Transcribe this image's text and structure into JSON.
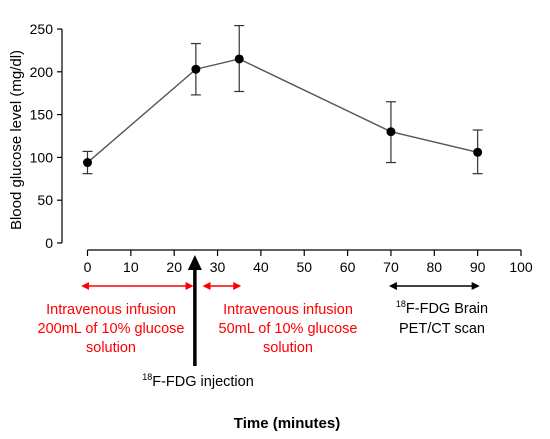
{
  "chart_data": {
    "type": "line",
    "title": "",
    "xlabel": "Time (minutes)",
    "ylabel": "Blood glucose level (mg/dl)",
    "xlim": [
      0,
      100
    ],
    "ylim": [
      0,
      250
    ],
    "x_ticks": [
      0,
      10,
      20,
      30,
      40,
      50,
      60,
      70,
      80,
      90,
      100
    ],
    "y_ticks": [
      0,
      50,
      100,
      150,
      200,
      250
    ],
    "grid": false,
    "series": [
      {
        "x": [
          0,
          25,
          35,
          70,
          90
        ],
        "values": [
          94,
          203,
          215,
          130,
          106
        ],
        "error_low": [
          81,
          173,
          177,
          94,
          81
        ],
        "error_high": [
          107,
          233,
          254,
          165,
          132
        ]
      }
    ],
    "annotations": [
      {
        "id": "infusion1",
        "lines": [
          "Intravenous infusion",
          "200mL of 10% glucose",
          "solution"
        ],
        "x_start": -1,
        "x_end": 24,
        "color": "#ff0000",
        "arrow": "double"
      },
      {
        "id": "infusion2",
        "lines": [
          "Intravenous infusion",
          "50mL of 10% glucose",
          "solution"
        ],
        "x_start": 27,
        "x_end": 35,
        "color": "#ff0000",
        "arrow": "double"
      },
      {
        "id": "injection",
        "sup": "18",
        "text": "F-FDG injection",
        "x": 25,
        "color": "#000000",
        "arrow": "up"
      },
      {
        "id": "petct",
        "sup": "18",
        "line1": "F-FDG Brain",
        "line2": "PET/CT scan",
        "x_start": 70,
        "x_end": 90,
        "color": "#000000",
        "arrow": "double"
      }
    ]
  }
}
